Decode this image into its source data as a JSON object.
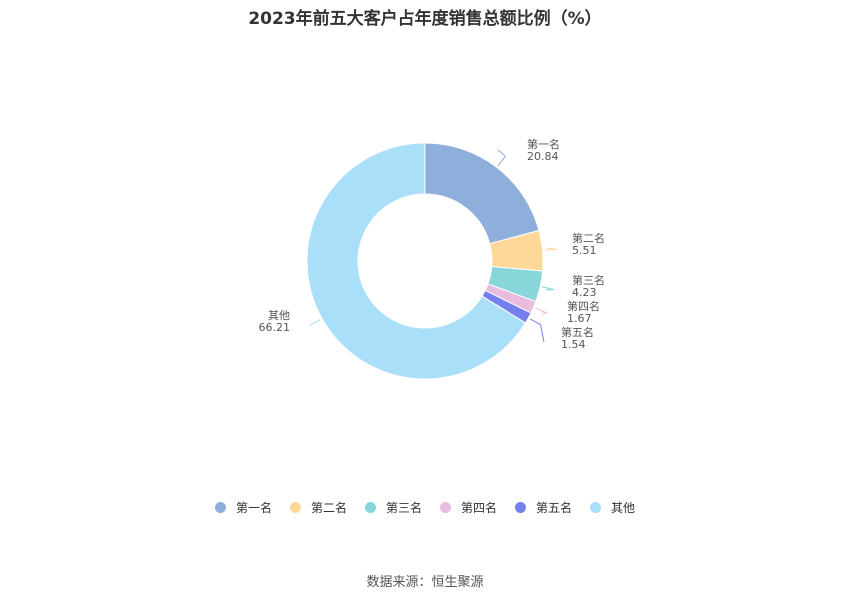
{
  "title": "2023年前五大客户占年度销售总额比例（%）",
  "source": "数据来源：恒生聚源",
  "chart_data": {
    "type": "pie",
    "variant": "donut",
    "title": "2023年前五大客户占年度销售总额比例（%）",
    "legend_position": "bottom",
    "slices": [
      {
        "name": "第一名",
        "value": 20.84,
        "label": "20.84",
        "color": "#8eaedb"
      },
      {
        "name": "第二名",
        "value": 5.51,
        "label": "5.51",
        "color": "#fdd899"
      },
      {
        "name": "第三名",
        "value": 4.23,
        "label": "4.23",
        "color": "#86d6da"
      },
      {
        "name": "第四名",
        "value": 1.67,
        "label": "1.67",
        "color": "#e8bcdc"
      },
      {
        "name": "第五名",
        "value": 1.54,
        "label": "1.54",
        "color": "#7580ee"
      },
      {
        "name": "其他",
        "value": 66.21,
        "label": "66.21",
        "color": "#aadffa"
      }
    ]
  }
}
